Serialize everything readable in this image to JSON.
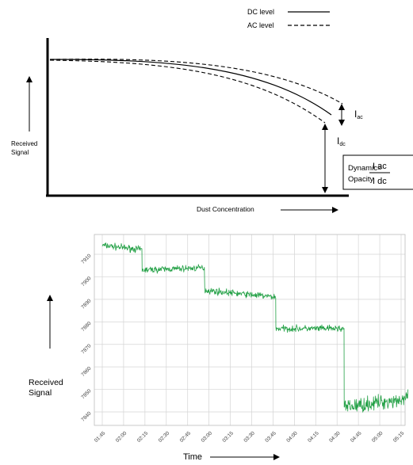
{
  "diagram": {
    "legend": {
      "dc_label": "DC level",
      "ac_label": "AC level"
    },
    "y_axis_label": [
      "Received",
      "Signal"
    ],
    "x_axis_label": "Dust Concentration",
    "i_ac": {
      "main": "I",
      "sub": "ac"
    },
    "i_dc": {
      "main": "I",
      "sub": "dc"
    },
    "formula": {
      "left_line1": "Dynamic=",
      "left_line2": "Opacity",
      "numerator": "I ac",
      "denominator": "I dc"
    }
  },
  "chart_data": {
    "type": "line",
    "title": "",
    "xlabel": "Time",
    "ylabel": "Received Signal",
    "x_tick_labels": [
      "01:45",
      "02:00",
      "02:15",
      "02:30",
      "02:45",
      "03:00",
      "03:15",
      "03:30",
      "03:45",
      "04:00",
      "04:15",
      "04:30",
      "04:45",
      "05:00",
      "05:15"
    ],
    "y_tick_labels": [
      "7910",
      "7900",
      "7890",
      "7880",
      "7870",
      "7860",
      "7850",
      "7840"
    ],
    "grid": true,
    "line_color": "#22a045",
    "series": [
      {
        "segments": [
          {
            "x_start": "01:45",
            "x_end": "02:13",
            "level_start": 7914,
            "level_end": 7912
          },
          {
            "x_start": "02:13",
            "x_end": "02:57",
            "level_start": 7903,
            "level_end": 7904
          },
          {
            "x_start": "02:57",
            "x_end": "03:47",
            "level_start": 7894,
            "level_end": 7891
          },
          {
            "x_start": "03:47",
            "x_end": "04:35",
            "level_start": 7877,
            "level_end": 7877
          },
          {
            "x_start": "04:35",
            "x_end": "05:20",
            "level_start": 7842,
            "level_end": 7846
          }
        ]
      }
    ]
  }
}
